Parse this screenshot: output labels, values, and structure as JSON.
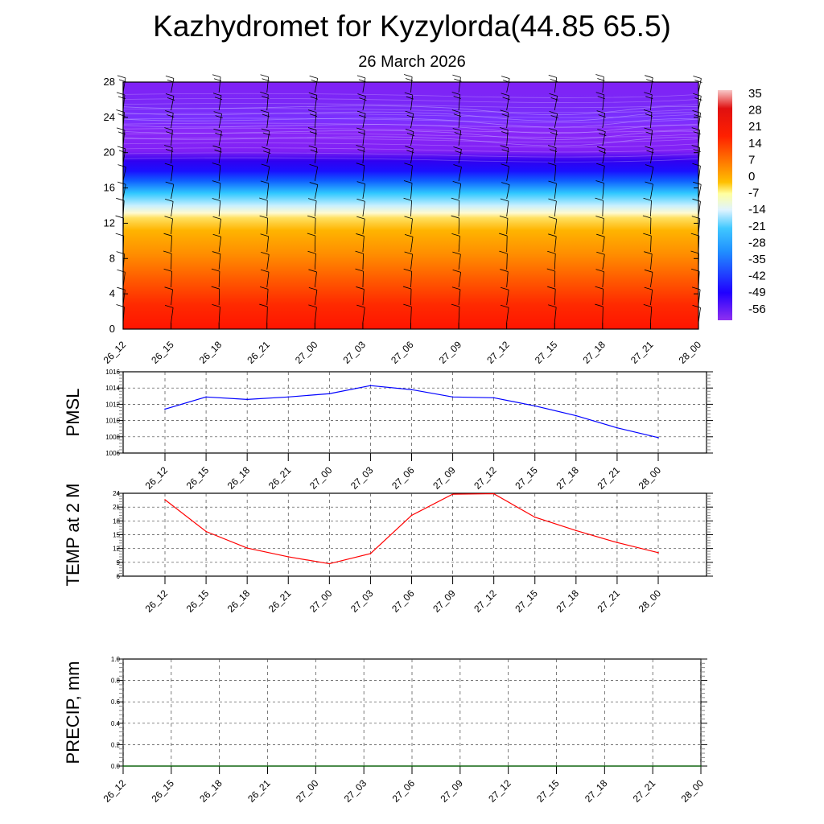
{
  "title": "Kazhydromet for Kyzylorda(44.85 65.5)",
  "subtitle": "26 March 2026",
  "chart_data": [
    {
      "type": "heatmap",
      "name": "vertical-cross-section",
      "x_ticks": [
        "26_12",
        "26_15",
        "26_18",
        "26_21",
        "27_00",
        "27_03",
        "27_06",
        "27_09",
        "27_12",
        "27_15",
        "27_18",
        "27_21",
        "28_00"
      ],
      "y_ticks": [
        "0",
        "4",
        "8",
        "12",
        "16",
        "20",
        "24",
        "28"
      ],
      "ylim": [
        0,
        28
      ],
      "colorbar_labels": [
        "35",
        "28",
        "21",
        "14",
        "7",
        "0",
        "-7",
        "-14",
        "-21",
        "-28",
        "-35",
        "-42",
        "-49",
        "-56"
      ],
      "colors": {
        "low": "#ff1a00",
        "mid": "#ffa500",
        "freezing": "#fffac8",
        "cold": "#00b4ff",
        "very_cold": "#1a00ff",
        "top": "#8020f5"
      }
    },
    {
      "type": "line",
      "ylabel": "PMSL",
      "ylim": [
        1006,
        1016
      ],
      "y_ticks": [
        "1006",
        "1008",
        "1010",
        "1012",
        "1014",
        "1016"
      ],
      "categories": [
        "26_12",
        "26_15",
        "26_18",
        "26_21",
        "27_00",
        "27_03",
        "27_06",
        "27_09",
        "27_12",
        "27_15",
        "27_18",
        "27_21",
        "28_00"
      ],
      "values": [
        1011.4,
        1012.9,
        1012.6,
        1012.9,
        1013.3,
        1014.3,
        1013.8,
        1012.9,
        1012.8,
        1011.8,
        1010.6,
        1009.1,
        1007.9
      ],
      "color": "#0000ff"
    },
    {
      "type": "line",
      "ylabel": "TEMP at 2 M",
      "ylim": [
        6,
        24
      ],
      "y_ticks": [
        "6",
        "9",
        "12",
        "15",
        "18",
        "21",
        "24"
      ],
      "categories": [
        "26_12",
        "26_15",
        "26_18",
        "26_21",
        "27_00",
        "27_03",
        "27_06",
        "27_09",
        "27_12",
        "27_15",
        "27_18",
        "27_21",
        "28_00"
      ],
      "values": [
        22.6,
        15.7,
        12.1,
        10.2,
        8.7,
        10.9,
        19.2,
        23.8,
        23.9,
        18.8,
        15.9,
        13.3,
        11.1
      ],
      "color": "#ff0000"
    },
    {
      "type": "line",
      "ylabel": "PRECIP, mm",
      "ylim": [
        0,
        1
      ],
      "y_ticks": [
        "0.0",
        "0.2",
        "0.4",
        "0.6",
        "0.8",
        "1.0"
      ],
      "categories": [
        "26_12",
        "26_15",
        "26_18",
        "26_21",
        "27_00",
        "27_03",
        "27_06",
        "27_09",
        "27_12",
        "27_15",
        "27_18",
        "27_21",
        "28_00"
      ],
      "values": [
        0,
        0,
        0,
        0,
        0,
        0,
        0,
        0,
        0,
        0,
        0,
        0,
        0
      ],
      "color": "#006400"
    }
  ]
}
